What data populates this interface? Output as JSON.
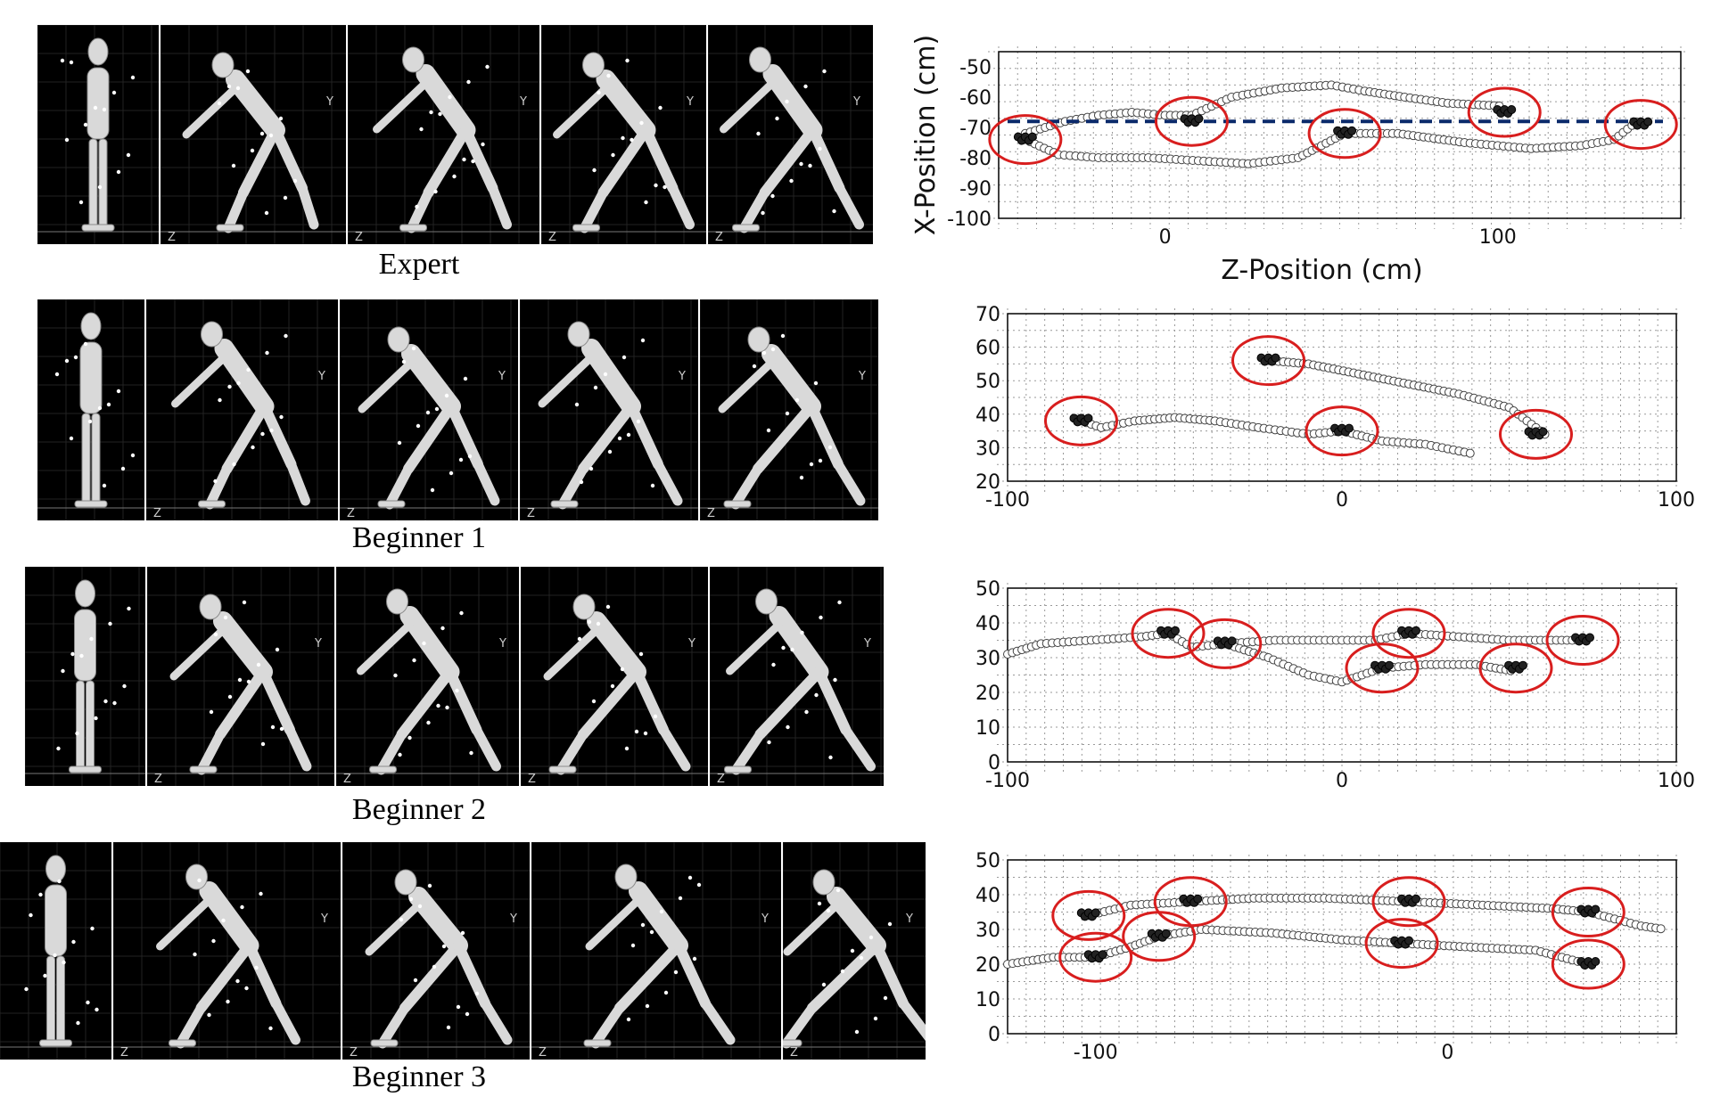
{
  "rows": [
    {
      "label": "Expert"
    },
    {
      "label": "Beginner 1"
    },
    {
      "label": "Beginner 2"
    },
    {
      "label": "Beginner 3"
    }
  ],
  "frame_axis_letters": {
    "y": "Y",
    "z": "Z"
  },
  "chart_data": [
    {
      "type": "scatter",
      "title": "",
      "xlabel": "Z-Position (cm)",
      "ylabel": "X-Position (cm)",
      "xlim": [
        -50,
        155
      ],
      "ylim": [
        -100,
        -45
      ],
      "x_ticks": [
        0,
        100
      ],
      "y_ticks": [
        -100,
        -90,
        -80,
        -70,
        -60,
        -50
      ],
      "y_tick_labels": [
        "-100",
        "-90",
        "-80",
        "-70",
        "-60",
        "-50"
      ],
      "x_tick_labels": [
        "0",
        "100"
      ],
      "reference_line": {
        "y": -68,
        "color": "#0b2a6b",
        "style": "dashed"
      },
      "highlight_color": "#d81e1e",
      "highlights": [
        {
          "x": -42,
          "y": -74
        },
        {
          "x": 8,
          "y": -68
        },
        {
          "x": 54,
          "y": -72
        },
        {
          "x": 102,
          "y": -65
        },
        {
          "x": 143,
          "y": -69
        }
      ],
      "series": [
        {
          "points": [
            [
              -42,
              -72
            ],
            [
              -30,
              -68
            ],
            [
              -20,
              -66
            ],
            [
              -10,
              -65
            ],
            [
              0,
              -66
            ],
            [
              8,
              -66
            ]
          ]
        },
        {
          "points": [
            [
              -42,
              -74
            ],
            [
              -32,
              -79
            ],
            [
              -20,
              -80
            ],
            [
              -5,
              -80
            ],
            [
              10,
              -81
            ],
            [
              25,
              -82
            ],
            [
              40,
              -80
            ],
            [
              54,
              -72
            ]
          ]
        },
        {
          "points": [
            [
              8,
              -66
            ],
            [
              20,
              -60
            ],
            [
              35,
              -57
            ],
            [
              50,
              -56
            ],
            [
              60,
              -58
            ],
            [
              72,
              -60
            ],
            [
              85,
              -62
            ],
            [
              102,
              -63
            ]
          ]
        },
        {
          "points": [
            [
              54,
              -72
            ],
            [
              70,
              -72
            ],
            [
              90,
              -75
            ],
            [
              110,
              -77
            ],
            [
              125,
              -76
            ],
            [
              135,
              -74
            ],
            [
              143,
              -67
            ]
          ]
        }
      ]
    },
    {
      "type": "scatter",
      "title": "",
      "xlabel": "",
      "ylabel": "",
      "xlim": [
        -100,
        100
      ],
      "ylim": [
        20,
        70
      ],
      "x_ticks": [
        -100,
        0,
        100
      ],
      "x_tick_labels": [
        "-100",
        "0",
        "100"
      ],
      "y_ticks": [
        20,
        30,
        40,
        50,
        60,
        70
      ],
      "y_tick_labels": [
        "20",
        "30",
        "40",
        "50",
        "60",
        "70"
      ],
      "highlight_color": "#d81e1e",
      "highlights": [
        {
          "x": -78,
          "y": 38
        },
        {
          "x": -22,
          "y": 56
        },
        {
          "x": 0,
          "y": 35
        },
        {
          "x": 58,
          "y": 34
        }
      ],
      "series": [
        {
          "points": [
            [
              -78,
              38
            ],
            [
              -72,
              36
            ],
            [
              -62,
              38
            ],
            [
              -50,
              39
            ],
            [
              -38,
              38
            ],
            [
              -25,
              36
            ],
            [
              -10,
              34
            ],
            [
              0,
              35
            ]
          ]
        },
        {
          "points": [
            [
              0,
              35
            ],
            [
              12,
              32
            ],
            [
              25,
              31
            ],
            [
              35,
              29
            ],
            [
              40,
              28
            ]
          ]
        },
        {
          "points": [
            [
              -22,
              56
            ],
            [
              -10,
              55
            ],
            [
              5,
              52
            ],
            [
              20,
              49
            ],
            [
              35,
              46
            ],
            [
              50,
              42
            ],
            [
              58,
              36
            ],
            [
              62,
              33
            ]
          ]
        }
      ]
    },
    {
      "type": "scatter",
      "title": "",
      "xlabel": "",
      "ylabel": "",
      "xlim": [
        -100,
        100
      ],
      "ylim": [
        0,
        50
      ],
      "x_ticks": [
        -100,
        0,
        100
      ],
      "x_tick_labels": [
        "-100",
        "0",
        "100"
      ],
      "y_ticks": [
        0,
        10,
        20,
        30,
        40,
        50
      ],
      "y_tick_labels": [
        "0",
        "10",
        "20",
        "30",
        "40",
        "50"
      ],
      "highlight_color": "#d81e1e",
      "highlights": [
        {
          "x": -52,
          "y": 37
        },
        {
          "x": -35,
          "y": 34
        },
        {
          "x": 12,
          "y": 27
        },
        {
          "x": 20,
          "y": 37
        },
        {
          "x": 52,
          "y": 27
        },
        {
          "x": 72,
          "y": 35
        }
      ],
      "series": [
        {
          "points": [
            [
              -100,
              31
            ],
            [
              -90,
              34
            ],
            [
              -75,
              35
            ],
            [
              -60,
              36
            ],
            [
              -52,
              37
            ]
          ]
        },
        {
          "points": [
            [
              -52,
              37
            ],
            [
              -45,
              33
            ],
            [
              -35,
              34
            ],
            [
              -20,
              35
            ],
            [
              -5,
              35
            ],
            [
              10,
              35
            ],
            [
              20,
              37
            ],
            [
              35,
              36
            ],
            [
              50,
              35
            ],
            [
              72,
              35
            ]
          ]
        },
        {
          "points": [
            [
              -35,
              34
            ],
            [
              -22,
              30
            ],
            [
              -10,
              25
            ],
            [
              0,
              23
            ],
            [
              12,
              27
            ],
            [
              25,
              28
            ],
            [
              40,
              28
            ],
            [
              52,
              26
            ]
          ]
        }
      ]
    },
    {
      "type": "scatter",
      "title": "",
      "xlabel": "",
      "ylabel": "",
      "xlim": [
        -125,
        65
      ],
      "ylim": [
        0,
        50
      ],
      "x_ticks": [
        -100,
        0
      ],
      "x_tick_labels": [
        "-100",
        "0"
      ],
      "y_ticks": [
        0,
        10,
        20,
        30,
        40,
        50
      ],
      "y_tick_labels": [
        "0",
        "10",
        "20",
        "30",
        "40",
        "50"
      ],
      "highlight_color": "#d81e1e",
      "highlights": [
        {
          "x": -102,
          "y": 34
        },
        {
          "x": -100,
          "y": 22
        },
        {
          "x": -73,
          "y": 38
        },
        {
          "x": -82,
          "y": 28
        },
        {
          "x": -11,
          "y": 38
        },
        {
          "x": -13,
          "y": 26
        },
        {
          "x": 40,
          "y": 35
        },
        {
          "x": 40,
          "y": 20
        }
      ],
      "series": [
        {
          "points": [
            [
              -102,
              34
            ],
            [
              -90,
              37
            ],
            [
              -73,
              38
            ],
            [
              -55,
              39
            ],
            [
              -35,
              39
            ],
            [
              -11,
              38
            ],
            [
              10,
              37
            ],
            [
              30,
              36
            ],
            [
              40,
              35
            ],
            [
              55,
              31
            ],
            [
              62,
              30
            ]
          ]
        },
        {
          "points": [
            [
              -125,
              20
            ],
            [
              -112,
              22
            ],
            [
              -100,
              22
            ],
            [
              -90,
              25
            ],
            [
              -82,
              28
            ],
            [
              -70,
              30
            ],
            [
              -50,
              29
            ],
            [
              -30,
              27
            ],
            [
              -13,
              26
            ],
            [
              5,
              25
            ],
            [
              25,
              24
            ],
            [
              40,
              20
            ]
          ]
        }
      ]
    }
  ]
}
